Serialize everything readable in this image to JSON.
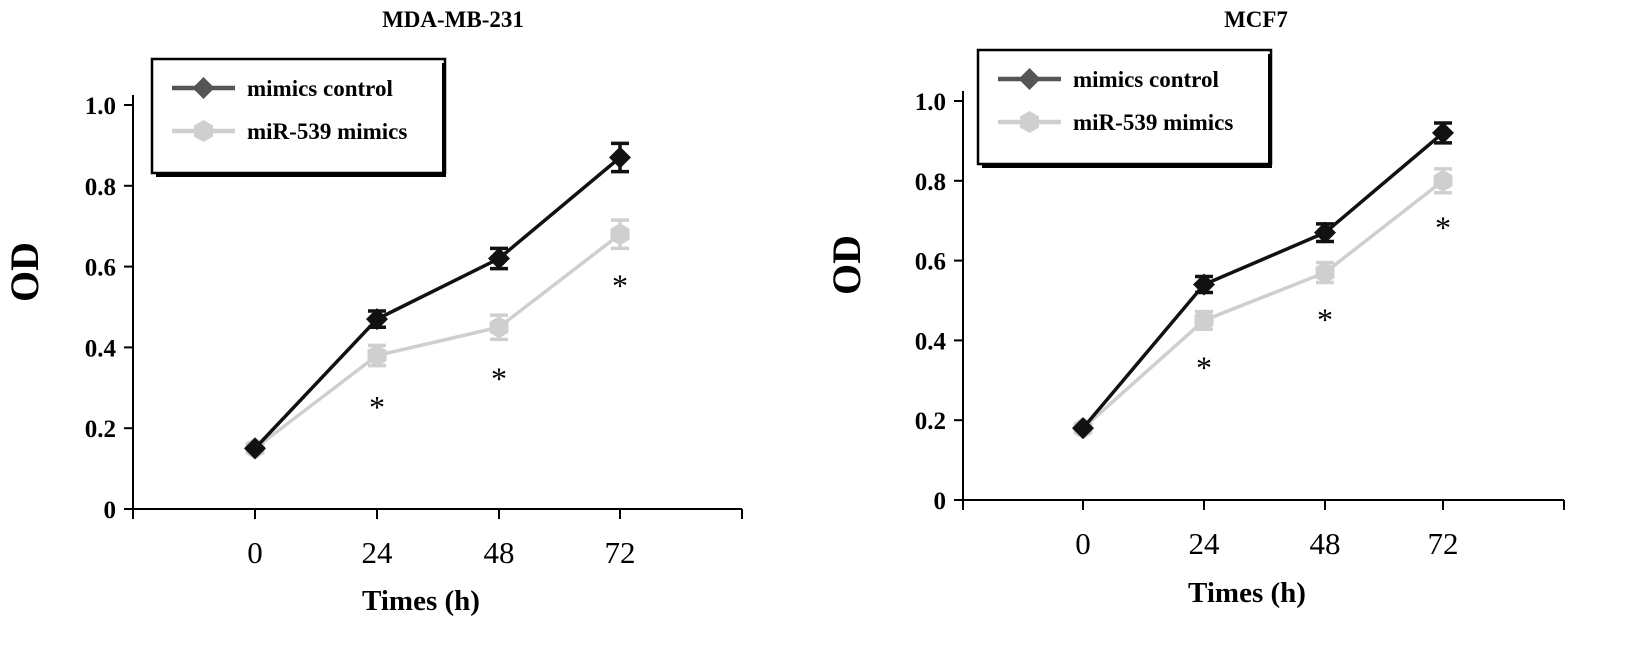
{
  "chart_data": [
    {
      "type": "line",
      "title": "MDA-MB-231",
      "xlabel": "Times (h)",
      "ylabel": "OD",
      "x": [
        0,
        24,
        48,
        72
      ],
      "yticks": [
        "0",
        "0.2",
        "0.4",
        "0.6",
        "0.8",
        "1.0"
      ],
      "ylim": [
        0,
        1.0
      ],
      "grid": false,
      "legend": "top-left",
      "series": [
        {
          "name": "mimics control",
          "color": "#111111",
          "marker": "diamond",
          "values": [
            0.15,
            0.47,
            0.62,
            0.87
          ],
          "errors": [
            0,
            0.02,
            0.025,
            0.035
          ]
        },
        {
          "name": "miR-539 mimics",
          "color": "#cfcfcf",
          "marker": "hexagon",
          "values": [
            0.15,
            0.38,
            0.45,
            0.68
          ],
          "errors": [
            0,
            0.025,
            0.03,
            0.035
          ]
        }
      ],
      "annotations": [
        {
          "text": "*",
          "x": 24,
          "y": 0.28
        },
        {
          "text": "*",
          "x": 48,
          "y": 0.35
        },
        {
          "text": "*",
          "x": 72,
          "y": 0.58
        }
      ]
    },
    {
      "type": "line",
      "title": "MCF7",
      "xlabel": "Times (h)",
      "ylabel": "OD",
      "x": [
        0,
        24,
        48,
        72
      ],
      "yticks": [
        "0",
        "0.2",
        "0.4",
        "0.6",
        "0.8",
        "1.0"
      ],
      "ylim": [
        0,
        1.0
      ],
      "grid": false,
      "legend": "top-left",
      "series": [
        {
          "name": "mimics control",
          "color": "#111111",
          "marker": "diamond",
          "values": [
            0.18,
            0.54,
            0.67,
            0.92
          ],
          "errors": [
            0,
            0.02,
            0.022,
            0.025
          ]
        },
        {
          "name": "miR-539 mimics",
          "color": "#cfcfcf",
          "marker": "hexagon",
          "values": [
            0.18,
            0.45,
            0.57,
            0.8
          ],
          "errors": [
            0,
            0.022,
            0.025,
            0.03
          ]
        }
      ],
      "annotations": [
        {
          "text": "*",
          "x": 24,
          "y": 0.36
        },
        {
          "text": "*",
          "x": 48,
          "y": 0.48
        },
        {
          "text": "*",
          "x": 72,
          "y": 0.71
        }
      ]
    }
  ]
}
